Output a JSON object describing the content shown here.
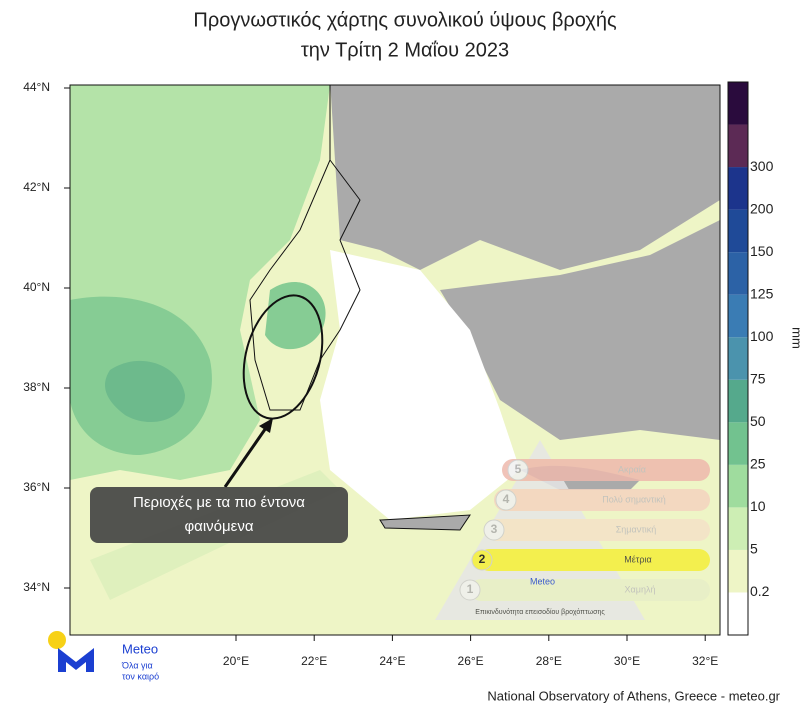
{
  "title": [
    "Προγνωστικός χάρτης συνολικού ύψους βροχής",
    "την Τρίτη 2 Μαΐου 2023"
  ],
  "lat_labels": [
    "44°N",
    "42°N",
    "40°N",
    "38°N",
    "36°N",
    "34°N"
  ],
  "lon_labels": [
    "20°E",
    "22°E",
    "24°E",
    "26°E",
    "28°E",
    "30°E",
    "32°E"
  ],
  "colorbar": {
    "unit": "mm",
    "labels": [
      "0.2",
      "5",
      "10",
      "25",
      "50",
      "75",
      "100",
      "125",
      "150",
      "200",
      "300"
    ],
    "colors": [
      "#ffffff",
      "#eef5c6",
      "#cdeeb4",
      "#9fdc9e",
      "#72c28f",
      "#55a98c",
      "#4b93ad",
      "#3a7cb4",
      "#2c62a6",
      "#1f4a98",
      "#1c348c",
      "#5c2a55",
      "#2a0b3d"
    ]
  },
  "annotation": [
    "Περιοχές με τα πιο έντονα",
    "φαινόμενα"
  ],
  "risk": {
    "levels": [
      "1",
      "2",
      "3",
      "4",
      "5"
    ],
    "labels": [
      "Χαμηλή",
      "Μέτρια",
      "Σημαντική",
      "Πολύ σημαντική",
      "Ακραία"
    ],
    "caption": "Επικινδυνότητα επεισοδίου βροχόπτωσης",
    "brand": "Meteo"
  },
  "logo": {
    "name": "Meteo",
    "tagline": [
      "Όλα για",
      "τον καιρό"
    ]
  },
  "credit": "National Observatory of Athens, Greece - meteo.gr"
}
